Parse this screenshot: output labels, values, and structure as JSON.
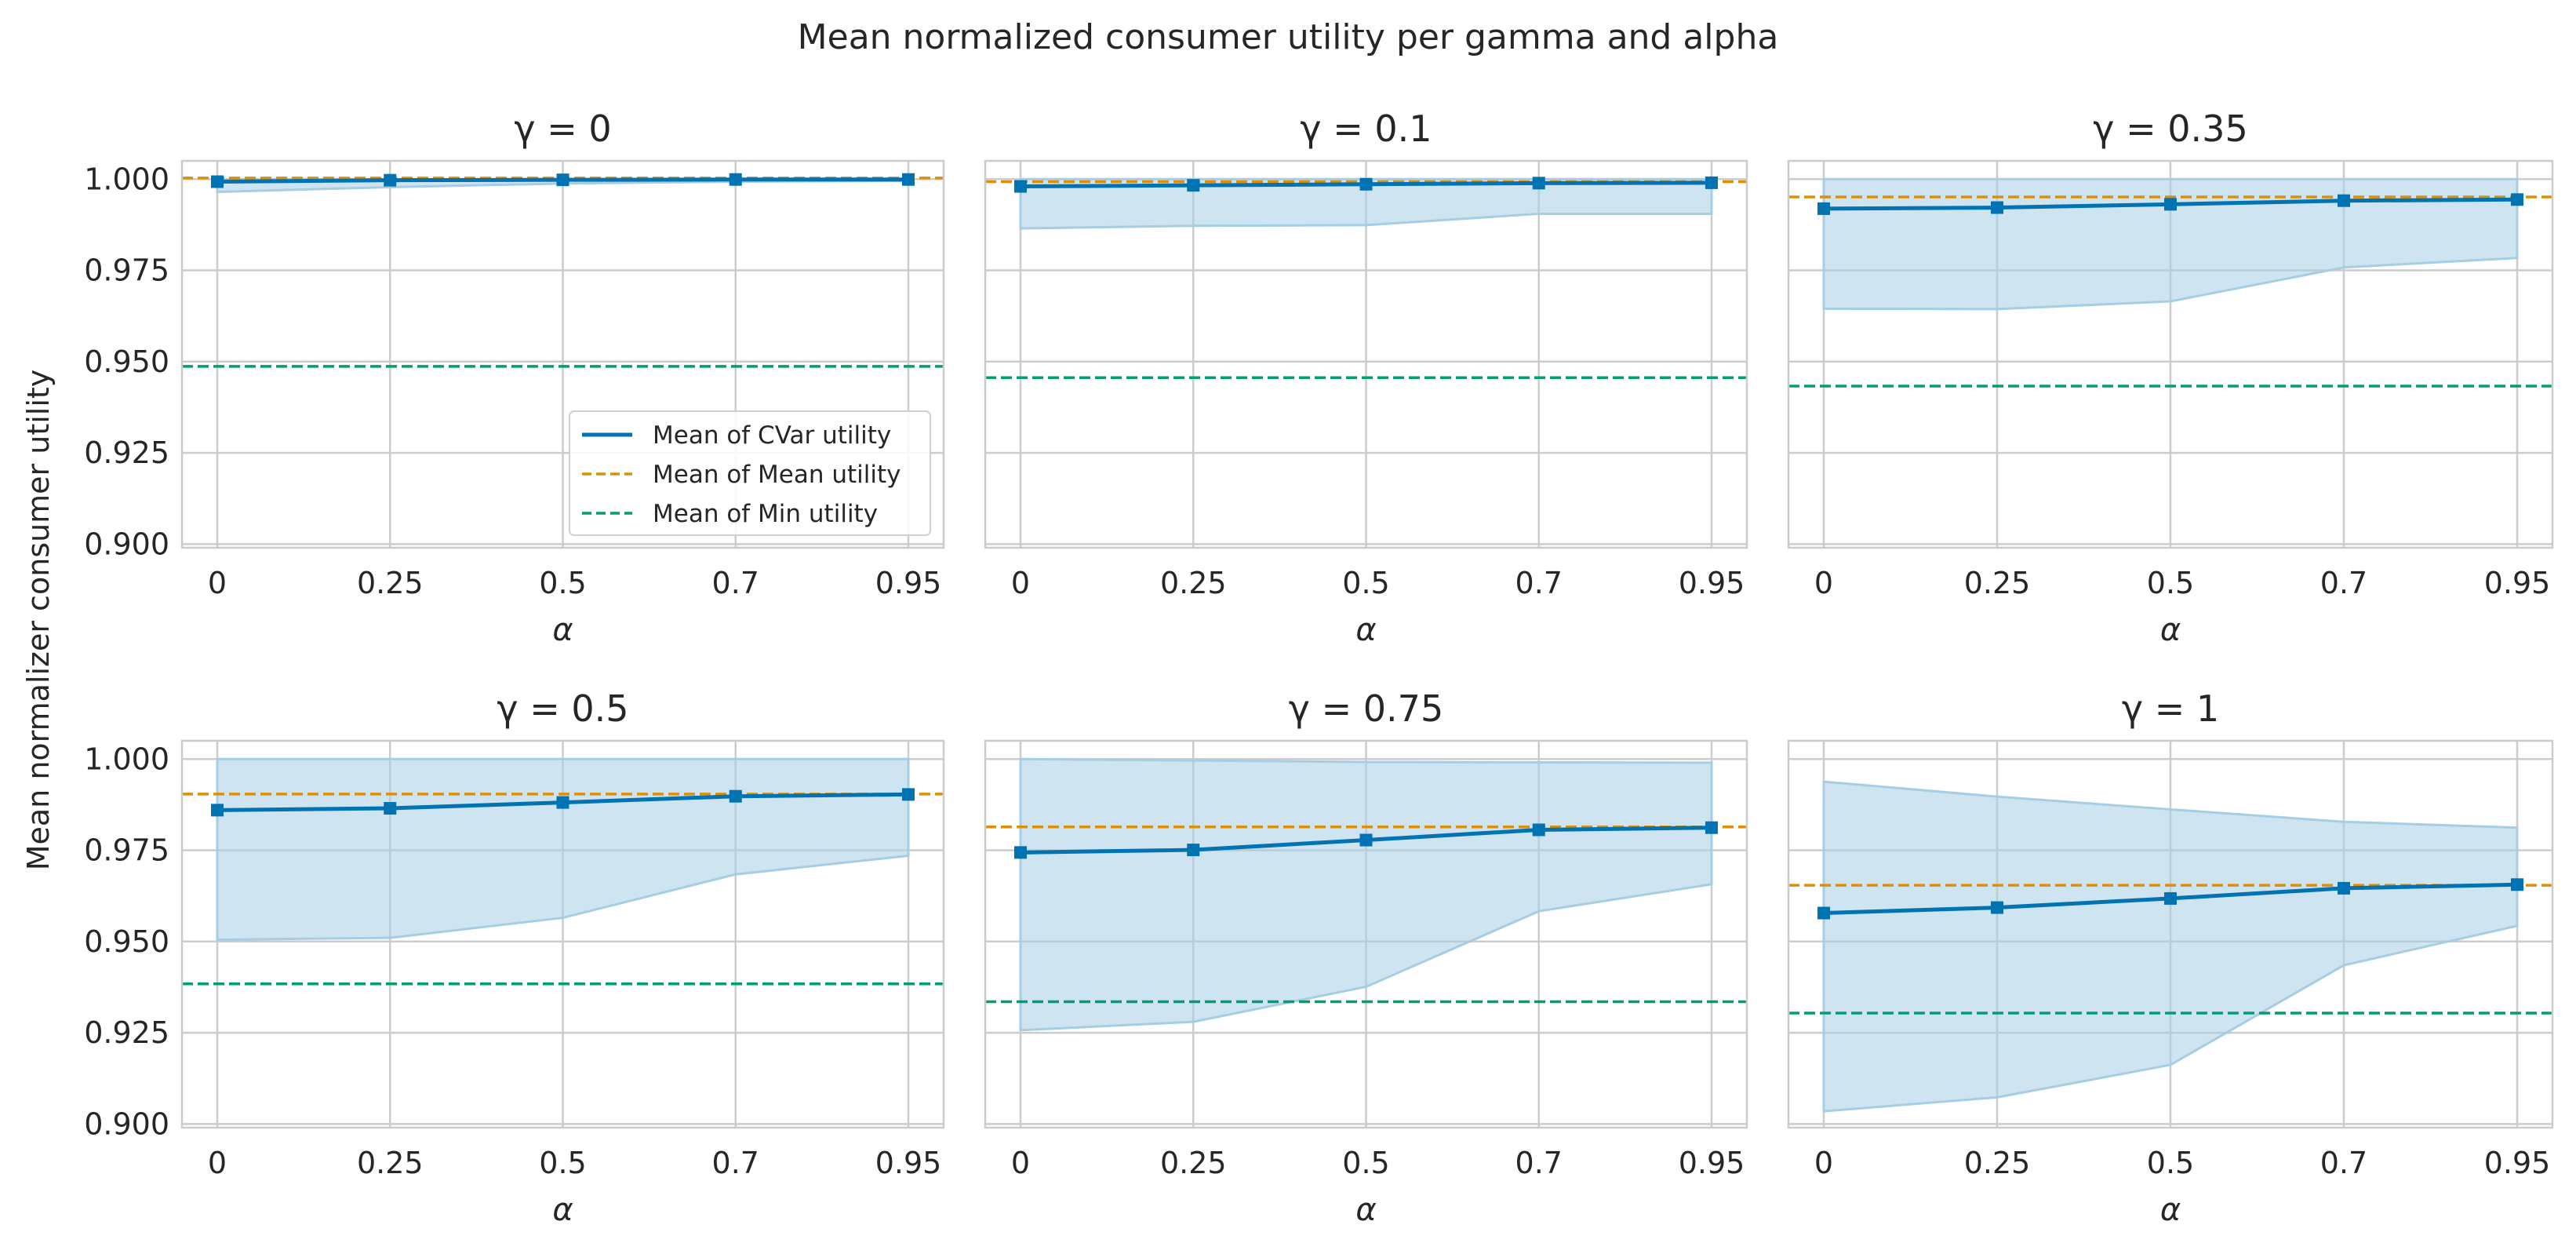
{
  "figure": {
    "title": "Mean normalized consumer utility per gamma and alpha",
    "ylabel": "Mean normalizer consumer utility"
  },
  "colors": {
    "cvar": "#0173b2",
    "band": "#a6cde3",
    "mean": "#de8f05",
    "min": "#029e73",
    "grid": "#cccccc",
    "spine": "#cccccc"
  },
  "legend": {
    "placement": "lower right of first panel",
    "entries": [
      "Mean of CVar utility",
      "Mean of Mean utility",
      "Mean of Min utility"
    ]
  },
  "chart_data": [
    {
      "type": "line",
      "title": "γ = 0",
      "xlabel": "α",
      "x_ticks": [
        "0",
        "0.25",
        "0.5",
        "0.7",
        "0.95"
      ],
      "ylim": [
        0.899,
        1.005
      ],
      "y_ticks": [
        "0.900",
        "0.925",
        "0.950",
        "0.975",
        "1.000"
      ],
      "cvar_mean": [
        0.9993,
        0.9997,
        0.9998,
        0.9999,
        0.9999
      ],
      "band_low": [
        0.9965,
        0.9978,
        0.9988,
        0.9993,
        0.9995
      ],
      "band_high": [
        1.0,
        1.0,
        1.0,
        1.0,
        1.0
      ],
      "mean_utility": 1.0003,
      "min_utility": 0.9487
    },
    {
      "type": "line",
      "title": "γ = 0.1",
      "xlabel": "α",
      "x_ticks": [
        "0",
        "0.25",
        "0.5",
        "0.7",
        "0.95"
      ],
      "ylim": [
        0.899,
        1.005
      ],
      "cvar_mean": [
        0.998,
        0.9983,
        0.9986,
        0.9989,
        0.999
      ],
      "band_low": [
        0.9865,
        0.9872,
        0.9874,
        0.9905,
        0.9905
      ],
      "band_high": [
        1.0,
        1.0,
        1.0,
        1.0,
        1.0
      ],
      "mean_utility": 0.9993,
      "min_utility": 0.9456
    },
    {
      "type": "line",
      "title": "γ = 0.35",
      "xlabel": "α",
      "x_ticks": [
        "0",
        "0.25",
        "0.5",
        "0.7",
        "0.95"
      ],
      "ylim": [
        0.899,
        1.005
      ],
      "cvar_mean": [
        0.9919,
        0.9922,
        0.9931,
        0.9941,
        0.9944
      ],
      "band_low": [
        0.9645,
        0.9644,
        0.9665,
        0.9758,
        0.9784
      ],
      "band_high": [
        1.0,
        1.0,
        1.0,
        1.0,
        1.0
      ],
      "mean_utility": 0.9951,
      "min_utility": 0.9433
    },
    {
      "type": "line",
      "title": "γ = 0.5",
      "xlabel": "α",
      "x_ticks": [
        "0",
        "0.25",
        "0.5",
        "0.7",
        "0.95"
      ],
      "ylim": [
        0.899,
        1.005
      ],
      "y_ticks": [
        "0.900",
        "0.925",
        "0.950",
        "0.975",
        "1.000"
      ],
      "cvar_mean": [
        0.986,
        0.9865,
        0.9881,
        0.9898,
        0.9903
      ],
      "band_low": [
        0.9505,
        0.951,
        0.9565,
        0.9684,
        0.9735
      ],
      "band_high": [
        1.0,
        1.0,
        1.0,
        1.0,
        1.0
      ],
      "mean_utility": 0.9904,
      "min_utility": 0.9384
    },
    {
      "type": "line",
      "title": "γ = 0.75",
      "xlabel": "α",
      "x_ticks": [
        "0",
        "0.25",
        "0.5",
        "0.7",
        "0.95"
      ],
      "ylim": [
        0.899,
        1.005
      ],
      "cvar_mean": [
        0.9744,
        0.9751,
        0.9778,
        0.9806,
        0.9812
      ],
      "band_low": [
        0.9257,
        0.928,
        0.9376,
        0.9583,
        0.9657
      ],
      "band_high": [
        1.0,
        0.9996,
        0.9992,
        0.9991,
        0.999
      ],
      "mean_utility": 0.9814,
      "min_utility": 0.9335
    },
    {
      "type": "line",
      "title": "γ = 1",
      "xlabel": "α",
      "x_ticks": [
        "0",
        "0.25",
        "0.5",
        "0.7",
        "0.95"
      ],
      "ylim": [
        0.899,
        1.005
      ],
      "cvar_mean": [
        0.9578,
        0.9593,
        0.9618,
        0.9646,
        0.9656
      ],
      "band_low": [
        0.9035,
        0.9073,
        0.9162,
        0.9435,
        0.9543
      ],
      "band_high": [
        0.9938,
        0.9897,
        0.9862,
        0.9828,
        0.9812
      ],
      "mean_utility": 0.9654,
      "min_utility": 0.9304
    }
  ]
}
